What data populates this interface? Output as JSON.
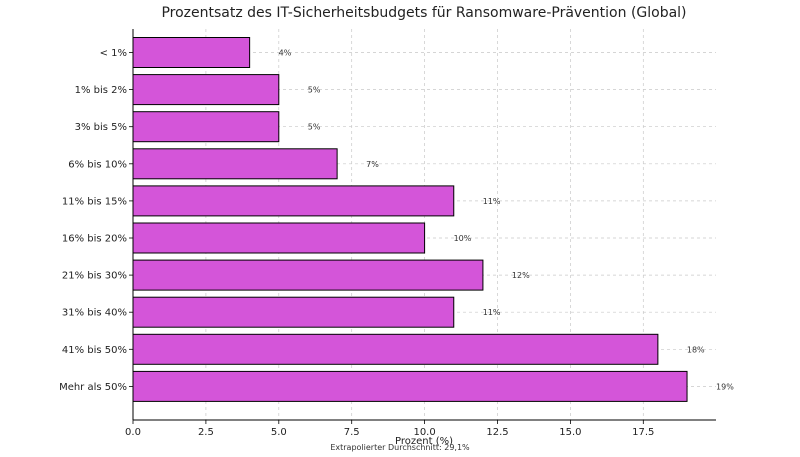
{
  "chart_data": {
    "type": "bar",
    "orientation": "horizontal",
    "title": "Prozentsatz des IT-Sicherheitsbudgets für Ransomware-Prävention (Global)",
    "xlabel": "Prozent (%)",
    "ylabel": "",
    "categories": [
      "< 1%",
      "1% bis 2%",
      "3% bis 5%",
      "6% bis 10%",
      "11% bis 15%",
      "16% bis 20%",
      "21% bis 30%",
      "31% bis 40%",
      "41% bis 50%",
      "Mehr als 50%"
    ],
    "values": [
      4,
      5,
      5,
      7,
      11,
      10,
      12,
      11,
      18,
      19
    ],
    "data_labels": [
      "4%",
      "5%",
      "5%",
      "7%",
      "11%",
      "10%",
      "12%",
      "11%",
      "18%",
      "19%"
    ],
    "xlim": [
      0,
      20
    ],
    "xticks": [
      0,
      2.5,
      5,
      7.5,
      10,
      12.5,
      15,
      17.5
    ],
    "xtick_labels": [
      "0.0",
      "2.5",
      "5.0",
      "7.5",
      "10.0",
      "12.5",
      "15.0",
      "17.5"
    ],
    "grid": true,
    "bar_color": "#d455d9",
    "bar_edge_color": "#000000",
    "note": "Extrapolierter Durchschnitt: 29,1%"
  }
}
